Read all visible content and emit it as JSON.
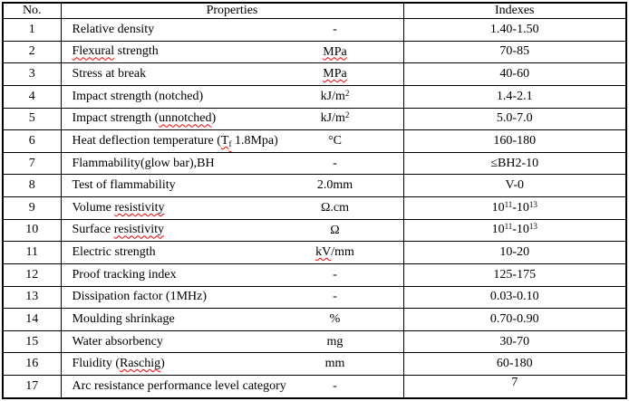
{
  "colors": {
    "text": "#000000",
    "border": "#000000",
    "background": "#ffffff",
    "squiggle": "#ff0000"
  },
  "table": {
    "columns": {
      "no": "No.",
      "properties": "Properties",
      "indexes": "Indexes"
    },
    "rows": [
      {
        "no": "1",
        "property": [
          {
            "t": "Relative density"
          }
        ],
        "unit": [
          {
            "t": "-"
          }
        ],
        "index": [
          {
            "t": "1.40-1.50"
          }
        ]
      },
      {
        "no": "2",
        "property": [
          {
            "t": "Flexural",
            "s": true
          },
          {
            "t": " strength"
          }
        ],
        "unit": [
          {
            "t": "MPa",
            "s": true
          }
        ],
        "index": [
          {
            "t": "70-85"
          }
        ]
      },
      {
        "no": "3",
        "property": [
          {
            "t": "Stress at break"
          }
        ],
        "unit": [
          {
            "t": "MPa",
            "s": true
          }
        ],
        "index": [
          {
            "t": "40-60"
          }
        ]
      },
      {
        "no": "4",
        "property": [
          {
            "t": "Impact strength (notched)"
          }
        ],
        "unit": [
          {
            "t": "kJ/m"
          },
          {
            "t": "2",
            "sup": true
          }
        ],
        "index": [
          {
            "t": "1.4-2.1"
          }
        ]
      },
      {
        "no": "5",
        "property": [
          {
            "t": "Impact strength ("
          },
          {
            "t": "unnotched",
            "s": true
          },
          {
            "t": ")"
          }
        ],
        "unit": [
          {
            "t": "kJ/m"
          },
          {
            "t": "2",
            "sup": true
          }
        ],
        "index": [
          {
            "t": "5.0-7.0"
          }
        ]
      },
      {
        "no": "6",
        "property": [
          {
            "t": "Heat deflection temperature ("
          },
          {
            "t": "T",
            "s": true
          },
          {
            "t": "f",
            "sub": true,
            "s": true
          },
          {
            "t": " 1.8Mpa)"
          }
        ],
        "unit": [
          {
            "t": "°C"
          }
        ],
        "index": [
          {
            "t": "160-180"
          }
        ]
      },
      {
        "no": "7",
        "property": [
          {
            "t": "Flammability(glow bar),BH"
          }
        ],
        "unit": [
          {
            "t": "-"
          }
        ],
        "index": [
          {
            "t": "≤BH2-10"
          }
        ]
      },
      {
        "no": "8",
        "property": [
          {
            "t": "Test of flammability"
          }
        ],
        "unit": [
          {
            "t": "2.0mm"
          }
        ],
        "index": [
          {
            "t": "V-0"
          }
        ]
      },
      {
        "no": "9",
        "property": [
          {
            "t": "Volume "
          },
          {
            "t": "resistivity",
            "s": true
          }
        ],
        "unit": [
          {
            "t": "Ω.cm"
          }
        ],
        "index": [
          {
            "t": "10"
          },
          {
            "t": "11",
            "sup": true
          },
          {
            "t": "-10"
          },
          {
            "t": "13",
            "sup": true
          }
        ]
      },
      {
        "no": "10",
        "property": [
          {
            "t": "Surface "
          },
          {
            "t": "resistivity",
            "s": true
          }
        ],
        "unit": [
          {
            "t": "Ω"
          }
        ],
        "index": [
          {
            "t": "10"
          },
          {
            "t": "11",
            "sup": true
          },
          {
            "t": "-10"
          },
          {
            "t": "13",
            "sup": true
          }
        ]
      },
      {
        "no": "11",
        "property": [
          {
            "t": "Electric strength"
          }
        ],
        "unit": [
          {
            "t": "kV",
            "s": true
          },
          {
            "t": "/mm"
          }
        ],
        "index": [
          {
            "t": "10-20"
          }
        ]
      },
      {
        "no": "12",
        "property": [
          {
            "t": "Proof tracking index"
          }
        ],
        "unit": [
          {
            "t": "-"
          }
        ],
        "index": [
          {
            "t": "125-175"
          }
        ]
      },
      {
        "no": "13",
        "property": [
          {
            "t": "Dissipation factor (1MHz)"
          }
        ],
        "unit": [
          {
            "t": "-"
          }
        ],
        "index": [
          {
            "t": "0.03-0.10"
          }
        ]
      },
      {
        "no": "14",
        "property": [
          {
            "t": "Moulding shrinkage"
          }
        ],
        "unit": [
          {
            "t": "%"
          }
        ],
        "index": [
          {
            "t": "0.70-0.90"
          }
        ]
      },
      {
        "no": "15",
        "property": [
          {
            "t": "Water absorbency"
          }
        ],
        "unit": [
          {
            "t": "mg"
          }
        ],
        "index": [
          {
            "t": "30-70"
          }
        ]
      },
      {
        "no": "16",
        "property": [
          {
            "t": "Fluidity ("
          },
          {
            "t": "Raschig",
            "s": true
          },
          {
            "t": ")"
          }
        ],
        "unit": [
          {
            "t": "mm"
          }
        ],
        "index": [
          {
            "t": "60-180"
          }
        ]
      },
      {
        "no": "17",
        "property": [
          {
            "t": "Arc resistance performance level category"
          }
        ],
        "unit": [
          {
            "t": "-"
          }
        ],
        "index": [
          {
            "t": "7"
          }
        ],
        "index_valign": "top"
      }
    ]
  }
}
